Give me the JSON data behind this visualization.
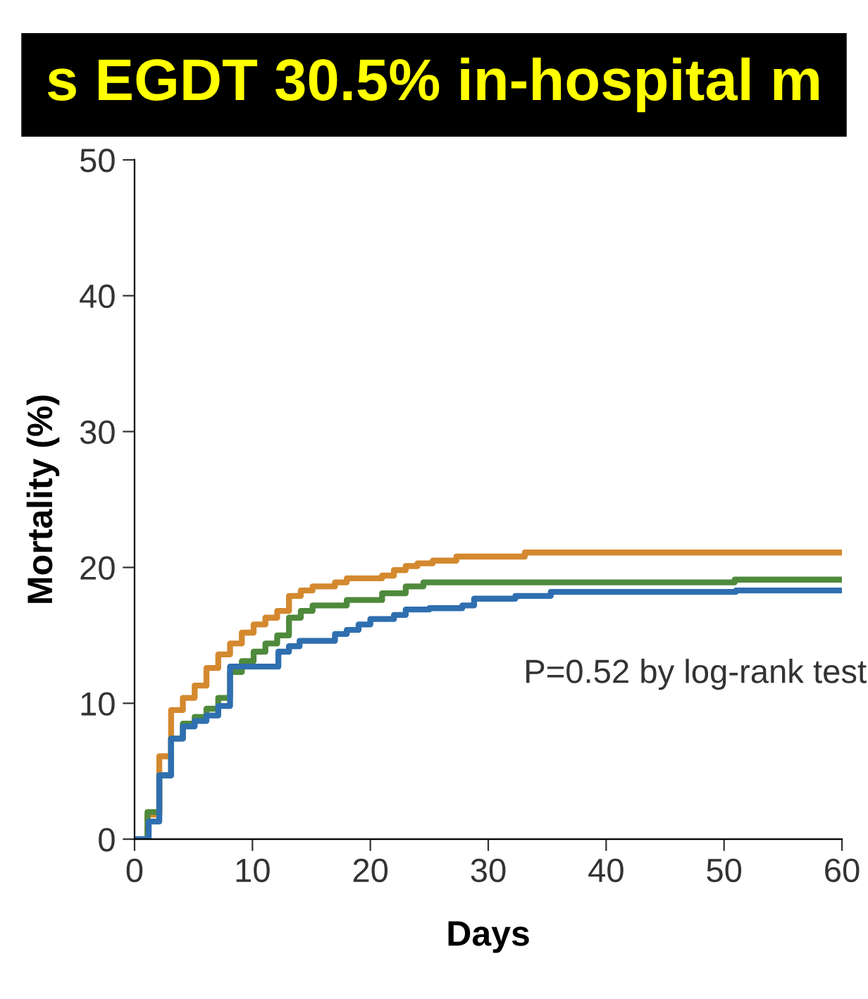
{
  "chart_data": {
    "type": "step",
    "title": "s EGDT 30.5% in-hospital m",
    "xlabel": "Days",
    "ylabel": "Mortality (%)",
    "xlim": [
      0,
      60
    ],
    "ylim": [
      0,
      50
    ],
    "xticks": [
      0,
      10,
      20,
      30,
      40,
      50,
      60
    ],
    "yticks": [
      0,
      10,
      20,
      30,
      40,
      50
    ],
    "grid": false,
    "legend": false,
    "annotations": [
      "P=0.52 by log-rank test"
    ],
    "series": [
      {
        "color": "#d4892f",
        "x": [
          0,
          1.1,
          2.1,
          3.1,
          4.1,
          5.1,
          6.1,
          7.1,
          8.1,
          9.1,
          10.1,
          11.1,
          12.1,
          13.1,
          14.1,
          15.1,
          17,
          18,
          21,
          22,
          23,
          24,
          25.3,
          27.3,
          33.1,
          60
        ],
        "values": [
          0,
          1.8,
          6.1,
          9.5,
          10.4,
          11.3,
          12.6,
          13.6,
          14.4,
          15.2,
          15.8,
          16.3,
          16.8,
          17.9,
          18.3,
          18.6,
          18.9,
          19.2,
          19.4,
          19.8,
          20.1,
          20.3,
          20.5,
          20.8,
          21.1,
          21.1
        ]
      },
      {
        "color": "#4f8a3c",
        "x": [
          0,
          1.1,
          2.1,
          3.1,
          4.1,
          5.1,
          6.1,
          7.1,
          8.1,
          9.1,
          10.1,
          11.1,
          12.1,
          13.1,
          14.1,
          15.1,
          18,
          21,
          23,
          24.5,
          50.9,
          60
        ],
        "values": [
          0,
          2.0,
          4.7,
          7.4,
          8.5,
          9.0,
          9.6,
          10.4,
          12.3,
          13.1,
          13.8,
          14.4,
          15.0,
          16.3,
          16.8,
          17.2,
          17.6,
          18.1,
          18.6,
          18.9,
          19.1,
          19.1
        ]
      },
      {
        "color": "#2f6fb0",
        "x": [
          0,
          1.2,
          2.1,
          3.1,
          4.1,
          5.1,
          6.1,
          7.1,
          8.1,
          12.2,
          13.1,
          14,
          17,
          18,
          19,
          20,
          22,
          23,
          25,
          27.8,
          28.8,
          32.3,
          35.3,
          51,
          60
        ],
        "values": [
          0,
          1.3,
          4.7,
          7.4,
          8.3,
          8.7,
          9.1,
          9.8,
          12.7,
          13.8,
          14.2,
          14.6,
          15.1,
          15.4,
          15.8,
          16.2,
          16.5,
          16.9,
          17.0,
          17.2,
          17.7,
          17.9,
          18.2,
          18.3,
          18.3
        ]
      }
    ]
  }
}
